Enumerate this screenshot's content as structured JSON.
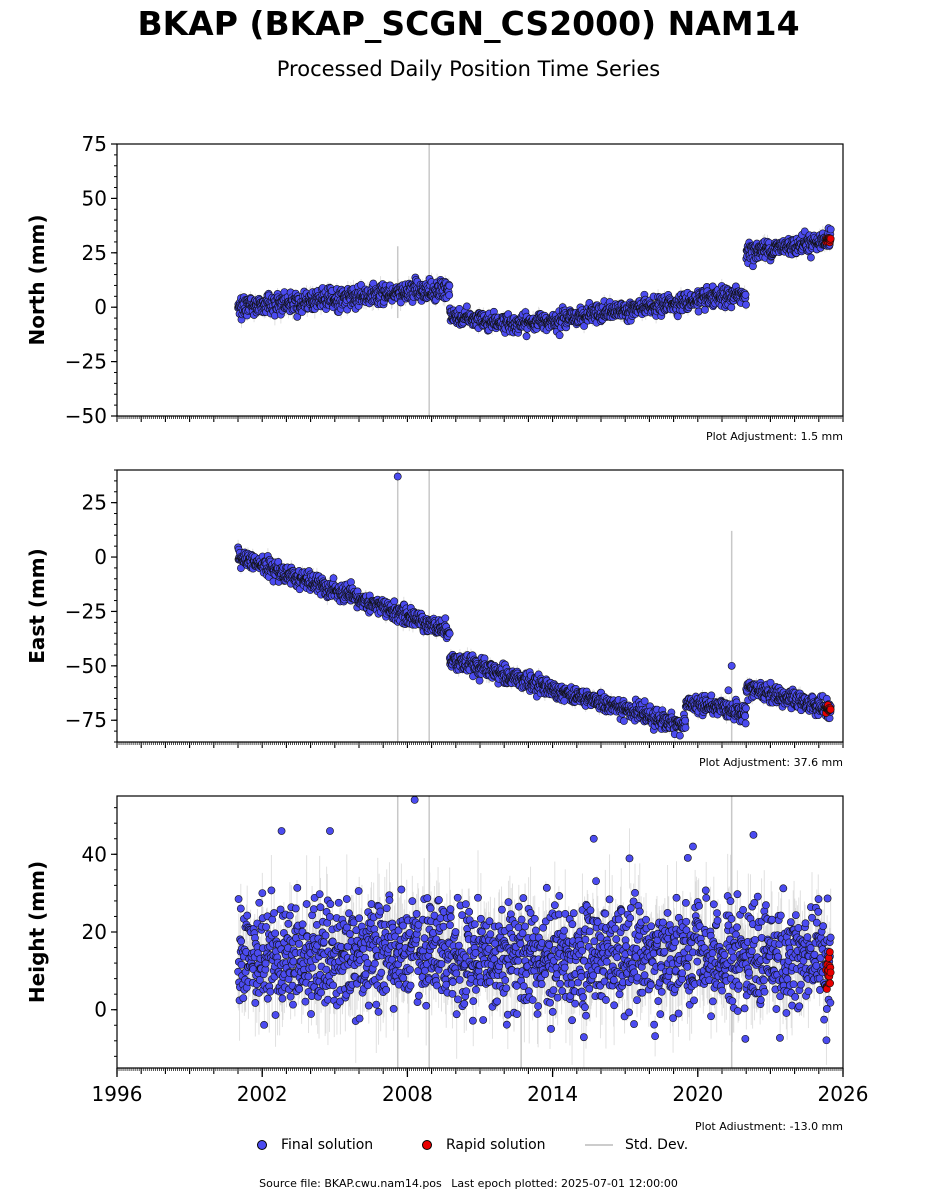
{
  "title": "BKAP (BKAP_SCGN_CS2000) NAM14",
  "subtitle": "Processed Daily Position Time Series",
  "chart_data": [
    {
      "type": "scatter",
      "ylabel": "North (mm)",
      "ylim": [
        -50,
        75
      ],
      "yticks": [
        75,
        50,
        25,
        0,
        -25,
        -50
      ],
      "xlim": [
        1996,
        2026
      ],
      "adjustment": "Plot Adjustment: 1.5 mm",
      "segments": [
        {
          "start": 2001.0,
          "end": 2009.75,
          "y0": 0,
          "y1": 8.5,
          "noise": 2.5
        },
        {
          "start": 2009.75,
          "end": 2012.5,
          "y0": -4,
          "y1": -8,
          "noise": 2.0
        },
        {
          "start": 2012.5,
          "end": 2022.0,
          "y0": -8,
          "y1": 6,
          "noise": 2.0
        },
        {
          "start": 2022.0,
          "end": 2025.5,
          "y0": 25,
          "y1": 31,
          "noise": 2.0
        }
      ],
      "rapid": {
        "start": 2025.3,
        "end": 2025.5,
        "y": 31,
        "noise": 0.8
      },
      "std_spikes": [
        {
          "x": 2008.9,
          "min": -50,
          "max": 75
        },
        {
          "x": 2007.6,
          "min": -5,
          "max": 28
        }
      ]
    },
    {
      "type": "scatter",
      "ylabel": "East (mm)",
      "ylim": [
        -85,
        40
      ],
      "yticks": [
        25,
        0,
        -25,
        -50,
        -75
      ],
      "xlim": [
        1996,
        2026
      ],
      "adjustment": "Plot Adjustment: 37.6 mm",
      "segments": [
        {
          "start": 2001.0,
          "end": 2009.75,
          "y0": 0,
          "y1": -34,
          "noise": 2.0
        },
        {
          "start": 2009.75,
          "end": 2019.5,
          "y0": -47,
          "y1": -78,
          "noise": 2.0
        },
        {
          "start": 2019.5,
          "end": 2022.0,
          "y0": -67,
          "y1": -71,
          "noise": 2.0
        },
        {
          "start": 2022.0,
          "end": 2025.5,
          "y0": -60,
          "y1": -70,
          "noise": 2.0
        }
      ],
      "rapid": {
        "start": 2025.3,
        "end": 2025.5,
        "y": -70,
        "noise": 0.8
      },
      "outliers": [
        {
          "x": 2007.6,
          "y": 37
        },
        {
          "x": 2021.4,
          "y": -50
        }
      ],
      "std_spikes": [
        {
          "x": 2007.6,
          "min": -85,
          "max": 40
        },
        {
          "x": 2008.9,
          "min": -85,
          "max": 40
        },
        {
          "x": 2021.4,
          "min": -85,
          "max": 12
        }
      ]
    },
    {
      "type": "scatter",
      "ylabel": "Height (mm)",
      "ylim": [
        -15,
        55
      ],
      "yticks": [
        40,
        20,
        0
      ],
      "xlim": [
        1996,
        2026
      ],
      "xticks": [
        1996,
        2002,
        2008,
        2014,
        2020,
        2026
      ],
      "adjustment": "Plot Adjustment: -13.0 mm",
      "segments": [
        {
          "start": 2001.0,
          "end": 2025.5,
          "y0": 14,
          "y1": 14,
          "noise": 7.0
        }
      ],
      "rapid": {
        "start": 2025.3,
        "end": 2025.5,
        "y": 10,
        "noise": 3.0
      },
      "outliers": [
        {
          "x": 2008.3,
          "y": 54
        },
        {
          "x": 2002.8,
          "y": 46
        },
        {
          "x": 2004.8,
          "y": 46
        },
        {
          "x": 2015.7,
          "y": 44
        },
        {
          "x": 2019.8,
          "y": 42
        },
        {
          "x": 2022.3,
          "y": 45
        }
      ],
      "std_spikes": [
        {
          "x": 2007.6,
          "min": -15,
          "max": 55
        },
        {
          "x": 2008.9,
          "min": -15,
          "max": 55
        },
        {
          "x": 2021.4,
          "min": -15,
          "max": 55
        },
        {
          "x": 2012.7,
          "min": -15,
          "max": 25
        }
      ]
    }
  ],
  "legend": {
    "final": "Final solution",
    "rapid": "Rapid solution",
    "std": "Std. Dev."
  },
  "footer": {
    "source": "Source file: BKAP.cwu.nam14.pos",
    "last_epoch": "Last epoch plotted: 2025-07-01 12:00:00"
  },
  "colors": {
    "final": "#4b4bf0",
    "rapid": "#e80000",
    "std": "#c8c8c8"
  }
}
